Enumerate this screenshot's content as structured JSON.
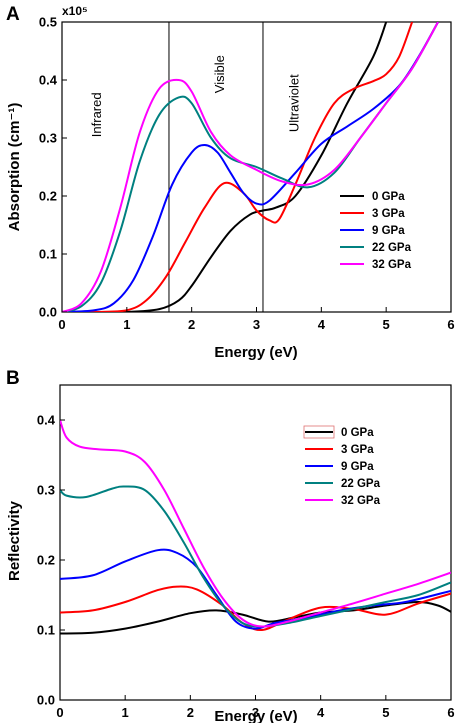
{
  "chart_data": [
    {
      "type": "line",
      "panel_label": "A",
      "title": "",
      "xlabel": "Energy (eV)",
      "ylabel": "Absorption (cm⁻¹)",
      "scale_label": "x10⁵",
      "xlim": [
        0,
        6
      ],
      "ylim": [
        0,
        0.5
      ],
      "xticks": [
        0,
        1,
        2,
        3,
        4,
        5,
        6
      ],
      "yticks": [
        0.0,
        0.1,
        0.2,
        0.3,
        0.4,
        0.5
      ],
      "ytick_labels": [
        "0.0",
        "0.1",
        "0.2",
        "0.3",
        "0.4",
        "0.5"
      ],
      "grid": false,
      "legend_position": "right",
      "vlines": [
        1.65,
        3.1
      ],
      "region_labels": [
        {
          "text": "Infrared",
          "x": 0.6,
          "y": 0.34
        },
        {
          "text": "Visible",
          "x": 2.5,
          "y": 0.41
        },
        {
          "text": "Ultraviolet",
          "x": 3.65,
          "y": 0.36
        }
      ],
      "series": [
        {
          "name": "0 GPa",
          "color": "#000000",
          "x": [
            0,
            0.5,
            1.0,
            1.5,
            1.8,
            2.0,
            2.3,
            2.6,
            2.9,
            3.1,
            3.3,
            3.6,
            4.0,
            4.4,
            4.8,
            5.0
          ],
          "y": [
            0,
            0,
            0,
            0.005,
            0.02,
            0.045,
            0.095,
            0.14,
            0.168,
            0.175,
            0.18,
            0.2,
            0.27,
            0.36,
            0.44,
            0.5
          ]
        },
        {
          "name": "3 GPa",
          "color": "#ff0000",
          "x": [
            0,
            0.5,
            1.0,
            1.3,
            1.6,
            1.9,
            2.2,
            2.5,
            2.8,
            3.0,
            3.2,
            3.35,
            3.6,
            3.9,
            4.2,
            4.5,
            4.8,
            5.0,
            5.2,
            5.4
          ],
          "y": [
            0,
            0,
            0.003,
            0.02,
            0.06,
            0.12,
            0.18,
            0.222,
            0.205,
            0.175,
            0.158,
            0.16,
            0.22,
            0.3,
            0.36,
            0.385,
            0.398,
            0.41,
            0.44,
            0.5
          ]
        },
        {
          "name": "9 GPa",
          "color": "#0000ff",
          "x": [
            0,
            0.5,
            0.8,
            1.1,
            1.4,
            1.7,
            2.0,
            2.2,
            2.4,
            2.6,
            2.8,
            3.0,
            3.2,
            3.6,
            4.0,
            4.4,
            4.8,
            5.2,
            5.5,
            5.8
          ],
          "y": [
            0,
            0.003,
            0.015,
            0.055,
            0.13,
            0.22,
            0.275,
            0.288,
            0.275,
            0.24,
            0.205,
            0.187,
            0.192,
            0.24,
            0.29,
            0.32,
            0.35,
            0.39,
            0.44,
            0.5
          ]
        },
        {
          "name": "22 GPa",
          "color": "#008080",
          "x": [
            0,
            0.3,
            0.6,
            0.9,
            1.2,
            1.5,
            1.8,
            2.0,
            2.3,
            2.6,
            3.0,
            3.4,
            3.8,
            4.2,
            4.6,
            5.0,
            5.4,
            5.8
          ],
          "y": [
            0,
            0.01,
            0.05,
            0.14,
            0.26,
            0.34,
            0.37,
            0.36,
            0.3,
            0.265,
            0.25,
            0.23,
            0.215,
            0.24,
            0.3,
            0.36,
            0.42,
            0.5
          ]
        },
        {
          "name": "32 GPa",
          "color": "#ff00ff",
          "x": [
            0,
            0.3,
            0.6,
            0.9,
            1.2,
            1.5,
            1.8,
            2.0,
            2.3,
            2.6,
            3.0,
            3.4,
            3.8,
            4.2,
            4.6,
            5.0,
            5.4,
            5.8
          ],
          "y": [
            0,
            0.015,
            0.07,
            0.18,
            0.31,
            0.385,
            0.4,
            0.38,
            0.31,
            0.27,
            0.245,
            0.225,
            0.22,
            0.245,
            0.3,
            0.36,
            0.42,
            0.5
          ]
        }
      ]
    },
    {
      "type": "line",
      "panel_label": "B",
      "title": "",
      "xlabel": "Energy (eV)",
      "ylabel": "Reflectivity",
      "xlim": [
        0,
        6
      ],
      "ylim": [
        0,
        0.45
      ],
      "xticks": [
        0,
        1,
        2,
        3,
        4,
        5,
        6
      ],
      "yticks": [
        0.0,
        0.1,
        0.2,
        0.3,
        0.4
      ],
      "ytick_labels": [
        "0.0",
        "0.1",
        "0.2",
        "0.3",
        "0.4"
      ],
      "grid": false,
      "legend_position": "top-right",
      "series": [
        {
          "name": "0 GPa",
          "color": "#000000",
          "x": [
            0,
            0.5,
            1.0,
            1.5,
            2.0,
            2.4,
            2.8,
            3.2,
            3.6,
            4.0,
            4.5,
            5.0,
            5.5,
            5.8,
            6.0
          ],
          "y": [
            0.095,
            0.096,
            0.102,
            0.112,
            0.124,
            0.128,
            0.122,
            0.112,
            0.118,
            0.125,
            0.128,
            0.135,
            0.14,
            0.135,
            0.126
          ]
        },
        {
          "name": "3 GPa",
          "color": "#ff0000",
          "x": [
            0,
            0.5,
            1.0,
            1.5,
            1.8,
            2.1,
            2.5,
            2.8,
            3.1,
            3.5,
            4.0,
            4.5,
            5.0,
            5.5,
            6.0
          ],
          "y": [
            0.125,
            0.128,
            0.14,
            0.157,
            0.162,
            0.158,
            0.135,
            0.11,
            0.1,
            0.115,
            0.132,
            0.13,
            0.122,
            0.138,
            0.152
          ]
        },
        {
          "name": "9 GPa",
          "color": "#0000ff",
          "x": [
            0,
            0.5,
            1.0,
            1.5,
            1.8,
            2.1,
            2.4,
            2.7,
            3.0,
            3.3,
            3.8,
            4.3,
            4.8,
            5.3,
            6.0
          ],
          "y": [
            0.173,
            0.178,
            0.198,
            0.214,
            0.21,
            0.19,
            0.15,
            0.112,
            0.102,
            0.11,
            0.118,
            0.128,
            0.135,
            0.14,
            0.156
          ]
        },
        {
          "name": "22 GPa",
          "color": "#008080",
          "x": [
            0,
            0.1,
            0.4,
            0.8,
            1.0,
            1.3,
            1.6,
            1.9,
            2.2,
            2.5,
            2.8,
            3.1,
            3.5,
            4.0,
            4.5,
            5.0,
            5.5,
            6.0
          ],
          "y": [
            0.3,
            0.292,
            0.29,
            0.302,
            0.305,
            0.3,
            0.27,
            0.225,
            0.175,
            0.135,
            0.11,
            0.105,
            0.11,
            0.12,
            0.13,
            0.14,
            0.15,
            0.168
          ]
        },
        {
          "name": "32 GPa",
          "color": "#ff00ff",
          "x": [
            0,
            0.1,
            0.3,
            0.6,
            1.0,
            1.3,
            1.6,
            1.9,
            2.2,
            2.5,
            2.8,
            3.1,
            3.5,
            4.0,
            4.5,
            5.0,
            5.5,
            6.0
          ],
          "y": [
            0.4,
            0.375,
            0.362,
            0.358,
            0.355,
            0.34,
            0.3,
            0.245,
            0.19,
            0.145,
            0.115,
            0.105,
            0.112,
            0.125,
            0.138,
            0.152,
            0.166,
            0.182
          ]
        }
      ]
    }
  ]
}
